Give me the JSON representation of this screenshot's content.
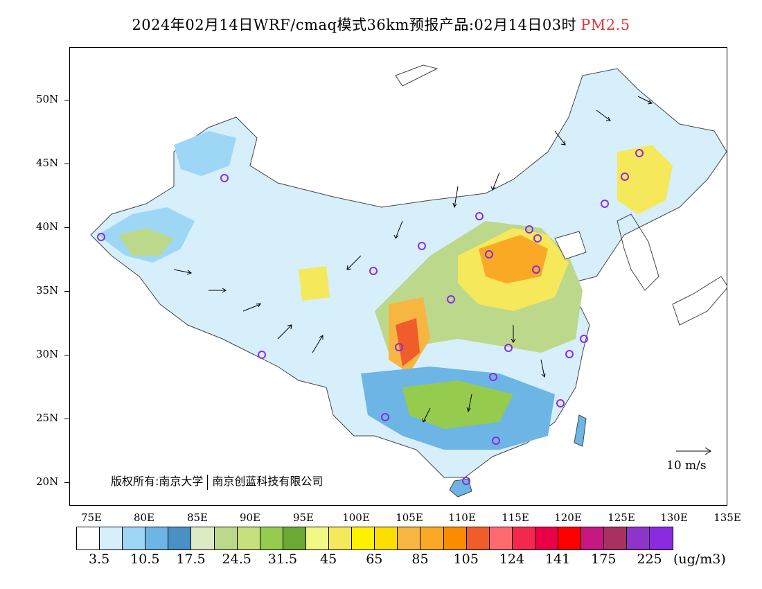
{
  "title": {
    "main": "2024年02月14日WRF/cmaq模式36km预报产品:02月14日03时",
    "variable": "PM2.5"
  },
  "map": {
    "lat_labels": [
      "50N",
      "45N",
      "40N",
      "35N",
      "30N",
      "25N",
      "20N"
    ],
    "lon_labels": [
      "75E",
      "80E",
      "85E",
      "90E",
      "95E",
      "100E",
      "105E",
      "110E",
      "115E",
      "120E",
      "125E",
      "130E",
      "135E"
    ],
    "copyright_prefix": "版权所有:南京大学",
    "copyright_suffix": "南京创蓝科技有限公司",
    "wind_scale_label": "10 m/s"
  },
  "legend": {
    "colors": [
      "#ffffff",
      "#d6effb",
      "#9dd7f5",
      "#6cb5e4",
      "#4a8fc6",
      "#dcebc3",
      "#bcd88a",
      "#c5e07d",
      "#96cc4e",
      "#6ca834",
      "#f1f884",
      "#f5e85a",
      "#fff200",
      "#fcdf00",
      "#f7b542",
      "#faa925",
      "#fb8c00",
      "#f05d2b",
      "#fd6a70",
      "#f5274f",
      "#ea0046",
      "#ff0000",
      "#c71882",
      "#a83162",
      "#8e34c9",
      "#8a2be2"
    ],
    "labels": [
      "3.5",
      "10.5",
      "17.5",
      "24.5",
      "31.5",
      "45",
      "65",
      "85",
      "105",
      "124",
      "141",
      "175",
      "225"
    ],
    "unit": "(ug/m3)"
  }
}
